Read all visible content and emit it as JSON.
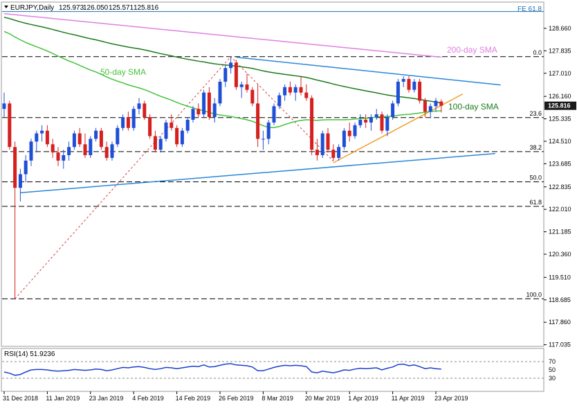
{
  "header": {
    "symbol_label": "EURJPY,Daily",
    "ohlc": [
      "125.973",
      "126.050",
      "125.571",
      "125.816"
    ],
    "fe_label": "FE 61.8"
  },
  "colors": {
    "bull": "#1f4fd6",
    "bear": "#d62020",
    "sma50": "#45c23a",
    "sma100": "#1b7a1b",
    "sma200": "#e080e0",
    "trend_blue": "#2a86d8",
    "trend_orange": "#f0a030",
    "fib_dash": "#000000",
    "zigzag": "#d04040",
    "rsi": "#1a3fd0",
    "price_box": "#1a1a1a"
  },
  "chart_data": [
    {
      "type": "candlestick",
      "ylim": [
        117.0,
        129.6
      ],
      "x_ticks": [
        "31 Dec 2018",
        "11 Jan 2019",
        "23 Jan 2019",
        "4 Feb 2019",
        "14 Feb 2019",
        "26 Feb 2019",
        "8 Mar 2019",
        "20 Mar 2019",
        "1 Apr 2019",
        "11 Apr 2019",
        "23 Apr 2019"
      ],
      "y_ticks": [
        "128.660",
        "127.835",
        "127.010",
        "126.160",
        "125.335",
        "124.510",
        "123.685",
        "122.835",
        "122.010",
        "121.185",
        "120.360",
        "119.510",
        "118.685",
        "117.860",
        "117.035"
      ],
      "last_price_label": "125.816",
      "last_price": 125.816,
      "fib_levels": [
        {
          "label": "0.0",
          "value": 127.62
        },
        {
          "label": "23.6",
          "value": 125.38
        },
        {
          "label": "38.2",
          "value": 124.13
        },
        {
          "label": "50.0",
          "value": 123.02
        },
        {
          "label": "61.8",
          "value": 122.12
        },
        {
          "label": "100.0",
          "value": 118.72
        }
      ],
      "fe_level_value": 129.28,
      "annotations": [
        {
          "text": "200-day SMA",
          "color": "#e080e0"
        },
        {
          "text": "50-day SMA",
          "color": "#45c23a"
        },
        {
          "text": "100-day SMA",
          "color": "#1b7a1b"
        }
      ],
      "candles": [
        [
          125.7,
          126.3,
          125.4,
          125.9
        ],
        [
          125.9,
          126.0,
          124.2,
          124.3
        ],
        [
          124.3,
          124.5,
          118.7,
          122.8
        ],
        [
          122.8,
          123.5,
          122.3,
          123.3
        ],
        [
          123.3,
          124.0,
          123.0,
          123.8
        ],
        [
          123.8,
          124.6,
          123.6,
          124.5
        ],
        [
          124.5,
          124.9,
          124.1,
          124.8
        ],
        [
          124.8,
          125.1,
          124.5,
          124.9
        ],
        [
          124.9,
          125.1,
          124.3,
          124.4
        ],
        [
          124.4,
          124.6,
          123.9,
          124.1
        ],
        [
          124.1,
          124.3,
          123.6,
          123.8
        ],
        [
          123.8,
          124.2,
          123.5,
          124.0
        ],
        [
          124.0,
          124.5,
          123.8,
          124.3
        ],
        [
          124.3,
          124.9,
          124.2,
          124.8
        ],
        [
          124.8,
          125.0,
          124.3,
          124.4
        ],
        [
          124.4,
          124.8,
          123.9,
          124.0
        ],
        [
          124.0,
          124.7,
          123.9,
          124.6
        ],
        [
          124.6,
          125.0,
          124.5,
          124.9
        ],
        [
          124.9,
          125.0,
          124.2,
          124.3
        ],
        [
          124.3,
          124.5,
          123.8,
          123.9
        ],
        [
          123.9,
          124.5,
          123.8,
          124.4
        ],
        [
          124.4,
          125.1,
          124.3,
          125.0
        ],
        [
          125.0,
          125.5,
          124.9,
          125.4
        ],
        [
          125.4,
          125.6,
          124.9,
          125.0
        ],
        [
          125.0,
          125.8,
          124.9,
          125.7
        ],
        [
          125.7,
          126.1,
          125.5,
          125.9
        ],
        [
          125.9,
          126.0,
          125.3,
          125.4
        ],
        [
          125.4,
          125.5,
          124.6,
          124.7
        ],
        [
          124.7,
          124.9,
          124.1,
          124.2
        ],
        [
          124.2,
          124.7,
          124.1,
          124.6
        ],
        [
          124.6,
          125.3,
          124.5,
          125.2
        ],
        [
          125.2,
          125.5,
          124.9,
          125.0
        ],
        [
          125.0,
          125.1,
          124.3,
          124.4
        ],
        [
          124.4,
          125.0,
          124.3,
          124.9
        ],
        [
          124.9,
          125.4,
          124.8,
          125.3
        ],
        [
          125.3,
          125.8,
          125.2,
          125.7
        ],
        [
          125.7,
          125.9,
          125.4,
          125.5
        ],
        [
          125.5,
          126.4,
          125.4,
          126.3
        ],
        [
          126.3,
          126.5,
          125.3,
          125.4
        ],
        [
          125.4,
          126.1,
          125.2,
          125.9
        ],
        [
          125.9,
          126.8,
          125.8,
          126.7
        ],
        [
          126.7,
          127.3,
          126.5,
          127.2
        ],
        [
          127.2,
          127.6,
          127.0,
          127.4
        ],
        [
          127.4,
          127.5,
          126.4,
          126.5
        ],
        [
          126.5,
          126.7,
          126.1,
          126.6
        ],
        [
          126.6,
          127.0,
          126.3,
          126.4
        ],
        [
          126.4,
          126.5,
          125.8,
          125.9
        ],
        [
          125.9,
          126.6,
          124.3,
          124.6
        ],
        [
          124.6,
          124.9,
          124.2,
          124.6
        ],
        [
          124.6,
          125.3,
          124.4,
          125.2
        ],
        [
          125.2,
          125.9,
          125.1,
          125.8
        ],
        [
          125.8,
          126.3,
          125.7,
          126.2
        ],
        [
          126.2,
          126.6,
          126.0,
          126.5
        ],
        [
          126.5,
          126.7,
          126.2,
          126.3
        ],
        [
          126.3,
          126.6,
          126.0,
          126.5
        ],
        [
          126.5,
          126.9,
          126.2,
          126.3
        ],
        [
          126.3,
          126.6,
          126.0,
          126.1
        ],
        [
          126.1,
          126.2,
          124.0,
          124.2
        ],
        [
          124.2,
          124.6,
          123.8,
          124.0
        ],
        [
          124.0,
          124.9,
          123.9,
          124.8
        ],
        [
          124.8,
          125.0,
          124.1,
          124.2
        ],
        [
          124.2,
          124.4,
          123.8,
          123.9
        ],
        [
          123.9,
          124.4,
          123.8,
          124.3
        ],
        [
          124.3,
          125.0,
          124.2,
          124.9
        ],
        [
          124.9,
          125.2,
          124.5,
          124.7
        ],
        [
          124.7,
          125.2,
          124.6,
          125.1
        ],
        [
          125.1,
          125.5,
          125.0,
          125.3
        ],
        [
          125.3,
          125.5,
          125.0,
          125.2
        ],
        [
          125.2,
          125.5,
          124.9,
          125.4
        ],
        [
          125.4,
          125.7,
          125.3,
          125.5
        ],
        [
          125.5,
          125.6,
          124.8,
          124.9
        ],
        [
          124.9,
          125.5,
          124.7,
          125.4
        ],
        [
          125.4,
          126.0,
          125.3,
          125.9
        ],
        [
          125.9,
          126.8,
          125.8,
          126.7
        ],
        [
          126.7,
          126.9,
          126.5,
          126.8
        ],
        [
          126.8,
          126.9,
          126.3,
          126.4
        ],
        [
          126.4,
          126.8,
          126.3,
          126.7
        ],
        [
          126.7,
          126.8,
          125.9,
          126.0
        ],
        [
          126.0,
          126.1,
          125.4,
          125.6
        ],
        [
          125.6,
          125.9,
          125.4,
          125.8
        ],
        [
          125.8,
          126.1,
          125.6,
          126.0
        ],
        [
          125.97,
          126.05,
          125.57,
          125.816
        ]
      ]
    },
    {
      "type": "line",
      "title": "RSI(14) 51.9236",
      "ylim": [
        0,
        100
      ],
      "y_ticks": [
        "70",
        "50",
        "30"
      ],
      "levels": [
        70,
        30
      ],
      "values": [
        45,
        42,
        37,
        39,
        45,
        50,
        51,
        51,
        50,
        48,
        47,
        48,
        49,
        51,
        50,
        49,
        50,
        52,
        51,
        48,
        50,
        53,
        56,
        55,
        57,
        58,
        56,
        53,
        51,
        53,
        56,
        55,
        53,
        55,
        57,
        59,
        58,
        62,
        57,
        58,
        61,
        64,
        65,
        62,
        61,
        60,
        57,
        48,
        48,
        52,
        56,
        59,
        61,
        60,
        61,
        60,
        58,
        45,
        43,
        47,
        45,
        43,
        46,
        50,
        49,
        52,
        54,
        53,
        54,
        55,
        50,
        54,
        57,
        63,
        64,
        60,
        62,
        58,
        53,
        55,
        53,
        51.9
      ]
    }
  ]
}
